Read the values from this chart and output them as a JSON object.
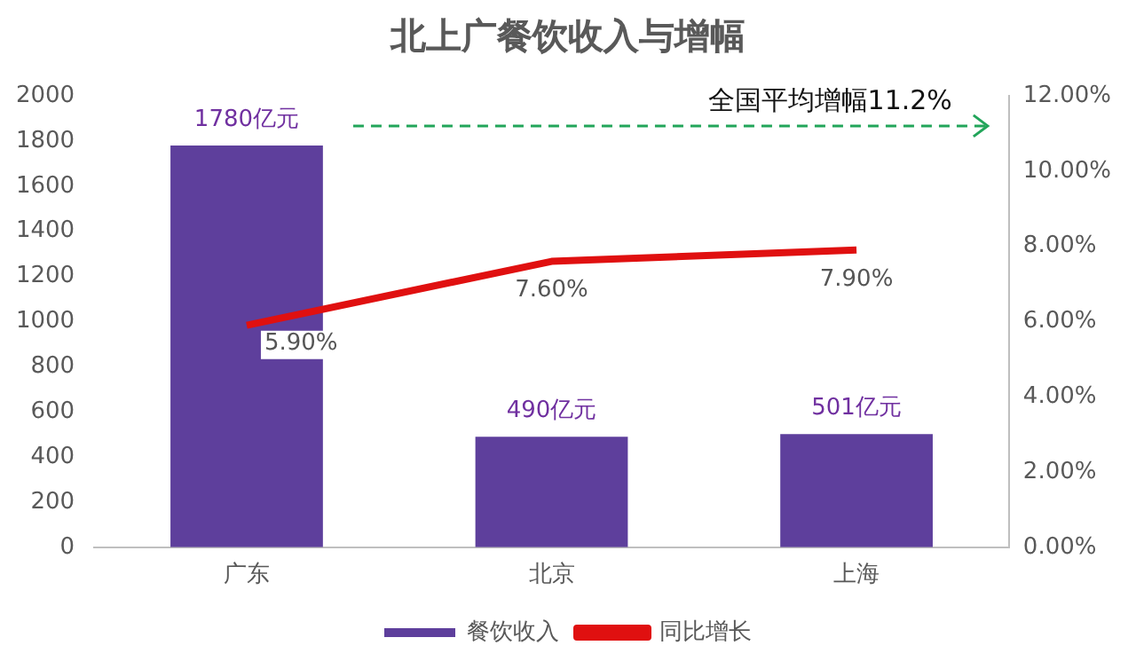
{
  "chart_data": {
    "type": "bar",
    "title": "北上广餐饮收入与增幅",
    "categories": [
      "广东",
      "北京",
      "上海"
    ],
    "series": [
      {
        "name": "餐饮收入",
        "color": "#5e3f9c",
        "values": [
          1780,
          490,
          501
        ],
        "value_labels": [
          "1780亿元",
          "490亿元",
          "501亿元"
        ]
      },
      {
        "name": "同比增长",
        "type": "line",
        "axis": "y2",
        "color": "#e01010",
        "values": [
          5.9,
          7.6,
          7.9
        ],
        "value_labels": [
          "5.90%",
          "7.60%",
          "7.90%"
        ]
      }
    ],
    "ylim": [
      0,
      2000
    ],
    "yticks": [
      0,
      200,
      400,
      600,
      800,
      1000,
      1200,
      1400,
      1600,
      1800,
      2000
    ],
    "y2lim": [
      0,
      12
    ],
    "y2ticks": [
      {
        "value": 0,
        "label": "0.00%"
      },
      {
        "value": 2,
        "label": "2.00%"
      },
      {
        "value": 4,
        "label": "4.00%"
      },
      {
        "value": 6,
        "label": "6.00%"
      },
      {
        "value": 8,
        "label": "8.00%"
      },
      {
        "value": 10,
        "label": "10.00%"
      },
      {
        "value": 12,
        "label": "12.00%"
      }
    ],
    "ref_lines": [
      {
        "axis": "y2",
        "value": 11.2,
        "label": "全国平均增幅11.2%",
        "color": "#22a55a",
        "line_style": "dashed"
      }
    ],
    "marker": "none",
    "grid": false,
    "legend": "bottom"
  }
}
